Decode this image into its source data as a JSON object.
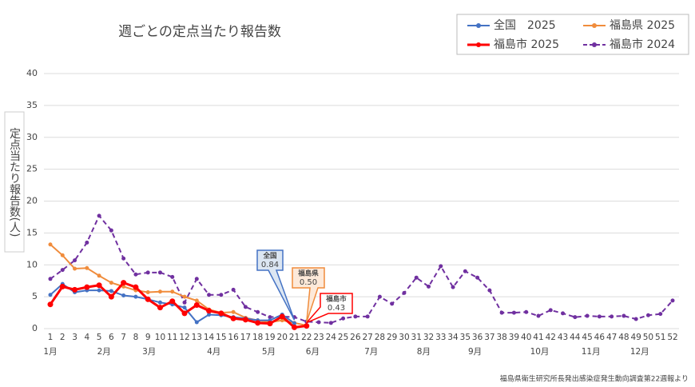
{
  "chart_data": {
    "type": "line",
    "title": "週ごとの定点当たり報告数",
    "y_label": "定点当たり報告数(人)",
    "source": "福島県衛生研究所長発出感染症発生動向調査第22週報より",
    "categories": [
      "1",
      "2",
      "3",
      "4",
      "5",
      "6",
      "7",
      "8",
      "9",
      "10",
      "11",
      "12",
      "13",
      "14",
      "15",
      "16",
      "17",
      "18",
      "19",
      "20",
      "21",
      "22",
      "23",
      "24",
      "25",
      "26",
      "27",
      "28",
      "29",
      "30",
      "31",
      "32",
      "33",
      "34",
      "35",
      "36",
      "37",
      "38",
      "39",
      "40",
      "41",
      "42",
      "43",
      "44",
      "45",
      "46",
      "47",
      "48",
      "49",
      "50",
      "51",
      "52"
    ],
    "month_labels": [
      "1月",
      "2月",
      "3月",
      "4月",
      "5月",
      "6月",
      "7月",
      "8月",
      "9月",
      "10月",
      "11月",
      "12月"
    ],
    "ylim": [
      0,
      40
    ],
    "yticks": [
      0,
      5,
      10,
      15,
      20,
      25,
      30,
      35,
      40
    ],
    "grid": true,
    "legend": "top-right",
    "series": [
      {
        "name": "全国　2025",
        "color": "#4472c4",
        "style": "solid",
        "values": [
          5.3,
          7.0,
          5.7,
          6.0,
          6.0,
          5.9,
          5.2,
          5.0,
          4.6,
          4.1,
          3.8,
          3.3,
          1.0,
          2.2,
          2.1,
          1.8,
          1.6,
          1.3,
          1.3,
          2.2,
          0.84,
          null,
          null,
          null,
          null,
          null,
          null,
          null,
          null,
          null,
          null,
          null,
          null,
          null,
          null,
          null,
          null,
          null,
          null,
          null,
          null,
          null,
          null,
          null,
          null,
          null,
          null,
          null,
          null,
          null,
          null,
          null
        ]
      },
      {
        "name": "福島県 2025",
        "color": "#f08c3c",
        "style": "solid",
        "values": [
          13.2,
          11.5,
          9.4,
          9.5,
          8.3,
          7.2,
          6.6,
          6.0,
          5.7,
          5.8,
          5.8,
          5.0,
          4.4,
          3.0,
          2.5,
          2.6,
          1.7,
          1.3,
          1.0,
          1.3,
          0.9,
          0.5,
          null,
          null,
          null,
          null,
          null,
          null,
          null,
          null,
          null,
          null,
          null,
          null,
          null,
          null,
          null,
          null,
          null,
          null,
          null,
          null,
          null,
          null,
          null,
          null,
          null,
          null,
          null,
          null,
          null,
          null
        ]
      },
      {
        "name": "福島市 2025",
        "color": "#ff0000",
        "style": "bold",
        "values": [
          3.8,
          6.6,
          6.1,
          6.5,
          6.8,
          5.0,
          7.2,
          6.5,
          4.6,
          3.3,
          4.3,
          2.4,
          3.7,
          2.8,
          2.4,
          1.6,
          1.4,
          0.9,
          0.8,
          1.9,
          0.2,
          0.43,
          null,
          null,
          null,
          null,
          null,
          null,
          null,
          null,
          null,
          null,
          null,
          null,
          null,
          null,
          null,
          null,
          null,
          null,
          null,
          null,
          null,
          null,
          null,
          null,
          null,
          null,
          null,
          null,
          null,
          null
        ]
      },
      {
        "name": "福島市 2024",
        "color": "#7030a0",
        "style": "dashed",
        "values": [
          7.8,
          9.2,
          10.7,
          13.5,
          17.7,
          15.4,
          11.0,
          8.5,
          8.8,
          8.8,
          8.1,
          4.1,
          7.8,
          5.3,
          5.3,
          6.1,
          3.4,
          2.6,
          1.8,
          1.9,
          1.8,
          1.1,
          1.0,
          0.9,
          1.6,
          1.9,
          1.9,
          5.0,
          3.9,
          5.6,
          8.0,
          6.6,
          9.8,
          6.5,
          9.0,
          8.0,
          6.0,
          2.5,
          2.5,
          2.6,
          2.0,
          2.9,
          2.4,
          1.8,
          2.0,
          1.9,
          1.9,
          2.0,
          1.5,
          2.1,
          2.3,
          4.4
        ]
      }
    ],
    "annotations": [
      {
        "label": "全国",
        "value_label": "0.84"
      },
      {
        "label": "福島県",
        "value_label": "0.50"
      },
      {
        "label": "福島市",
        "value_label": "0.43"
      }
    ]
  }
}
